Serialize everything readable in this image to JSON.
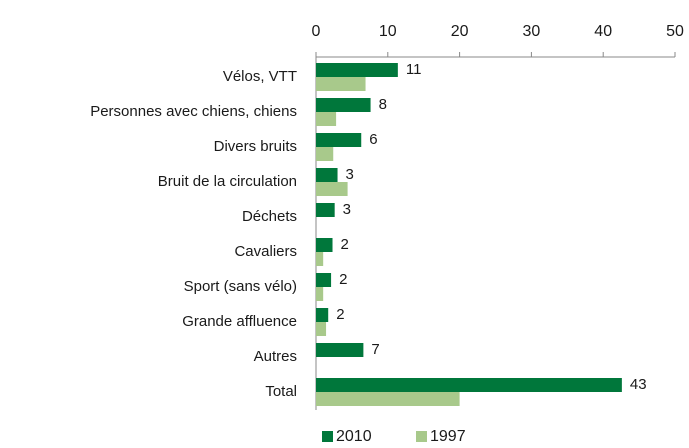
{
  "chart_data": {
    "type": "bar",
    "orientation": "horizontal",
    "categories": [
      "Vélos, VTT",
      "Personnes avec chiens, chiens",
      "Divers bruits",
      "Bruit de la circulation",
      "Déchets",
      "Cavaliers",
      "Sport (sans vélo)",
      "Grande affluence",
      "Autres",
      "Total"
    ],
    "series": [
      {
        "name": "2010",
        "color": "#00773b",
        "values": [
          11.4,
          7.6,
          6.3,
          3.0,
          2.6,
          2.3,
          2.1,
          1.7,
          6.6,
          42.6
        ],
        "value_labels": [
          "11",
          "8",
          "6",
          "3",
          "3",
          "2",
          "2",
          "2",
          "7",
          "43"
        ]
      },
      {
        "name": "1997",
        "color": "#a8c98b",
        "values": [
          6.9,
          2.8,
          2.4,
          4.4,
          null,
          1.0,
          1.0,
          1.4,
          null,
          20.0
        ]
      }
    ],
    "xlim": [
      0,
      50
    ],
    "xticks": [
      0,
      10,
      20,
      30,
      40,
      50
    ],
    "legend": "bottom"
  }
}
